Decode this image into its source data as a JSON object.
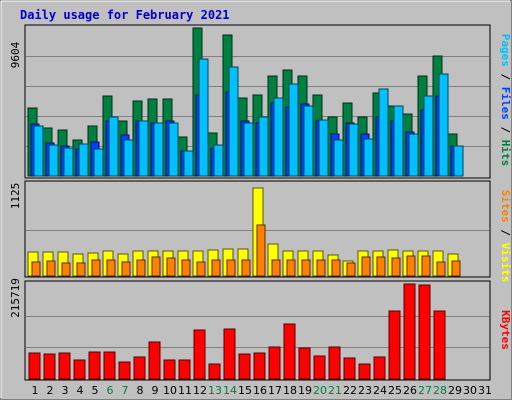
{
  "chart_data": {
    "type": "bar",
    "title": "Daily usage for February 2021",
    "x": [
      "1",
      "2",
      "3",
      "4",
      "5",
      "6",
      "7",
      "8",
      "9",
      "10",
      "11",
      "12",
      "13",
      "14",
      "15",
      "16",
      "17",
      "18",
      "19",
      "20",
      "21",
      "22",
      "23",
      "24",
      "25",
      "26",
      "27",
      "28",
      "29",
      "30",
      "31"
    ],
    "weekend_days": [
      "6",
      "7",
      "13",
      "14",
      "20",
      "21",
      "27",
      "28"
    ],
    "panels": [
      {
        "id": "hits",
        "max_label": "9604",
        "ymax": 9604,
        "label_parts": [
          {
            "text": "Pages",
            "color": "#00c0ff"
          },
          {
            "text": " / ",
            "color": "#000000"
          },
          {
            "text": "Files",
            "color": "#0040ff"
          },
          {
            "text": " / ",
            "color": "#000000"
          },
          {
            "text": "Hits",
            "color": "#008040"
          }
        ],
        "series": [
          {
            "name": "Hits",
            "color": "#008040",
            "values": [
              4350,
              3100,
              2950,
              2300,
              3200,
              5100,
              3500,
              4800,
              4900,
              4900,
              2500,
              9500,
              2750,
              9000,
              5000,
              5200,
              6400,
              6800,
              6400,
              5200,
              3800,
              4700,
              3800,
              5300,
              4500,
              4000,
              6400,
              7700,
              2700
            ]
          },
          {
            "name": "Files",
            "color": "#0040ff",
            "values": [
              3300,
              2100,
              1900,
              1700,
              2200,
              3500,
              2600,
              3500,
              3400,
              3500,
              1600,
              5200,
              1800,
              5400,
              3500,
              3400,
              4700,
              4400,
              4600,
              3500,
              2700,
              3400,
              2700,
              3800,
              3500,
              2800,
              4200,
              5100,
              1900
            ]
          },
          {
            "name": "Pages",
            "color": "#00c0ff",
            "values": [
              3200,
              2000,
              1800,
              2050,
              1700,
              3800,
              2300,
              3500,
              3400,
              3400,
              1600,
              7500,
              2000,
              7000,
              3400,
              3800,
              5000,
              5900,
              4500,
              3600,
              2300,
              3300,
              2400,
              5600,
              4500,
              2700,
              5100,
              6500,
              1900
            ]
          }
        ]
      },
      {
        "id": "visits",
        "max_label": "1125",
        "ymax": 1125,
        "label_parts": [
          {
            "text": "Sites",
            "color": "#ff8000"
          },
          {
            "text": " / ",
            "color": "#000000"
          },
          {
            "text": "Visits",
            "color": "#ffff00"
          }
        ],
        "series": [
          {
            "name": "Visits",
            "color": "#ffff00",
            "values": [
              290,
              290,
              290,
              270,
              280,
              300,
              270,
              310,
              300,
              300,
              300,
              300,
              320,
              330,
              330,
              1070,
              390,
              310,
              310,
              300,
              260,
              185,
              310,
              310,
              320,
              310,
              300,
              300,
              270
            ]
          },
          {
            "name": "Sites",
            "color": "#ff8000",
            "values": [
              170,
              180,
              160,
              160,
              190,
              200,
              170,
              190,
              230,
              220,
              190,
              170,
              200,
              200,
              200,
              620,
              200,
              200,
              190,
              200,
              190,
              155,
              230,
              230,
              220,
              240,
              250,
              170,
              180
            ]
          }
        ]
      },
      {
        "id": "kbytes",
        "max_label": "215719",
        "ymax": 215719,
        "label_parts": [
          {
            "text": "KBytes",
            "color": "#ff0000"
          }
        ],
        "series": [
          {
            "name": "KBytes",
            "color": "#ff0000",
            "values": [
              60000,
              57000,
              60000,
              44000,
              61000,
              62000,
              39000,
              51000,
              85000,
              43000,
              44000,
              112000,
              33000,
              113000,
              56000,
              59000,
              73000,
              126000,
              70000,
              53000,
              72000,
              48000,
              33000,
              50000,
              154000,
              215719,
              213000,
              155000
            ]
          }
        ]
      }
    ]
  }
}
